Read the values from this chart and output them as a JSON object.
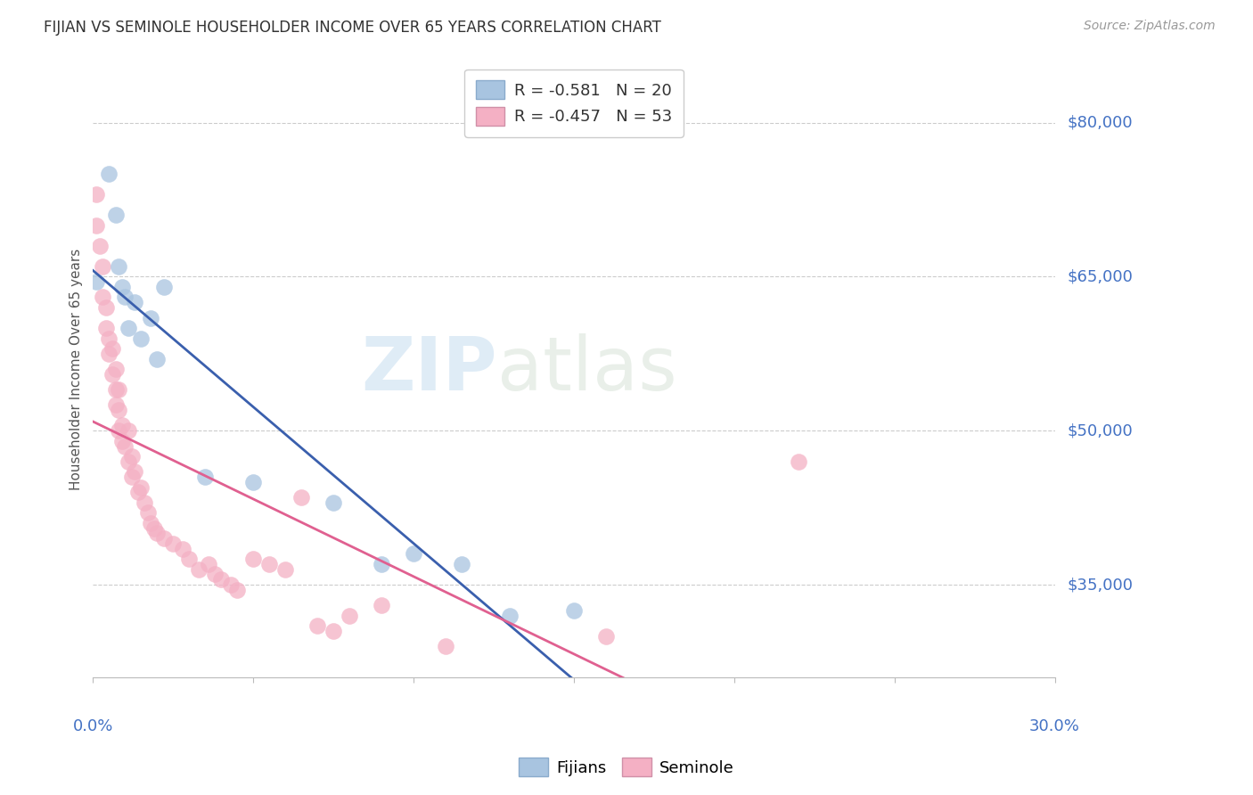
{
  "title": "FIJIAN VS SEMINOLE HOUSEHOLDER INCOME OVER 65 YEARS CORRELATION CHART",
  "source": "Source: ZipAtlas.com",
  "ylabel": "Householder Income Over 65 years",
  "watermark_zip": "ZIP",
  "watermark_atlas": "atlas",
  "ytick_labels": [
    "$80,000",
    "$65,000",
    "$50,000",
    "$35,000"
  ],
  "ytick_values": [
    80000,
    65000,
    50000,
    35000
  ],
  "ymin": 26000,
  "ymax": 86000,
  "xmin": 0.0,
  "xmax": 0.3,
  "legend_fijian": "R = -0.581   N = 20",
  "legend_seminole": "R = -0.457   N = 53",
  "fijian_color": "#a8c4e0",
  "seminole_color": "#f4b0c4",
  "fijian_line_color": "#3a5fad",
  "seminole_line_color": "#e06090",
  "background_color": "#ffffff",
  "grid_color": "#cccccc",
  "title_color": "#333333",
  "axis_label_color": "#4472c4",
  "ylabel_color": "#555555",
  "fijian_points_x": [
    0.001,
    0.005,
    0.007,
    0.008,
    0.009,
    0.01,
    0.011,
    0.013,
    0.015,
    0.018,
    0.02,
    0.022,
    0.035,
    0.05,
    0.075,
    0.09,
    0.1,
    0.115,
    0.13,
    0.15
  ],
  "fijian_points_y": [
    64500,
    75000,
    71000,
    66000,
    64000,
    63000,
    60000,
    62500,
    59000,
    61000,
    57000,
    64000,
    45500,
    45000,
    43000,
    37000,
    38000,
    37000,
    32000,
    32500
  ],
  "seminole_points_x": [
    0.001,
    0.001,
    0.002,
    0.003,
    0.003,
    0.004,
    0.004,
    0.005,
    0.005,
    0.006,
    0.006,
    0.007,
    0.007,
    0.007,
    0.008,
    0.008,
    0.008,
    0.009,
    0.009,
    0.01,
    0.011,
    0.011,
    0.012,
    0.012,
    0.013,
    0.014,
    0.015,
    0.016,
    0.017,
    0.018,
    0.019,
    0.02,
    0.022,
    0.025,
    0.028,
    0.03,
    0.033,
    0.036,
    0.038,
    0.04,
    0.043,
    0.045,
    0.05,
    0.055,
    0.06,
    0.065,
    0.07,
    0.075,
    0.08,
    0.09,
    0.11,
    0.16,
    0.22
  ],
  "seminole_points_y": [
    73000,
    70000,
    68000,
    66000,
    63000,
    62000,
    60000,
    59000,
    57500,
    58000,
    55500,
    56000,
    54000,
    52500,
    54000,
    52000,
    50000,
    50500,
    49000,
    48500,
    50000,
    47000,
    47500,
    45500,
    46000,
    44000,
    44500,
    43000,
    42000,
    41000,
    40500,
    40000,
    39500,
    39000,
    38500,
    37500,
    36500,
    37000,
    36000,
    35500,
    35000,
    34500,
    37500,
    37000,
    36500,
    43500,
    31000,
    30500,
    32000,
    33000,
    29000,
    30000,
    47000
  ],
  "xtick_label_left": "0.0%",
  "xtick_label_right": "30.0%"
}
